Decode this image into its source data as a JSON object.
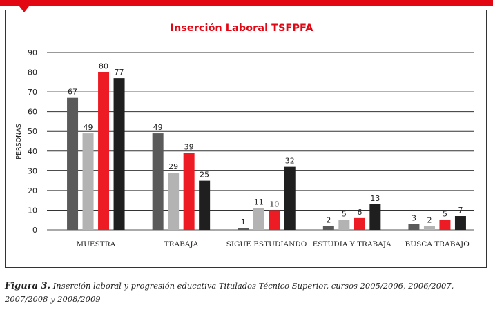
{
  "caption": {
    "figure_label": "Figura 3.",
    "text": "Inserción laboral y progresión educativa Titulados Técnico Superior, cursos 2005/2006, 2006/2007, 2007/2008 y 2008/2009"
  },
  "colors": {
    "accent": "#e30613",
    "series": [
      "#5a5a5a",
      "#b3b3b3",
      "#ed1c24",
      "#1f1f1f"
    ]
  },
  "chart_data": {
    "type": "bar",
    "title": "Inserción Laboral TSFPFA",
    "xlabel": "",
    "ylabel": "PERSONAS",
    "ylim": [
      0,
      90
    ],
    "yticks": [
      0,
      10,
      20,
      30,
      40,
      50,
      60,
      70,
      80,
      90
    ],
    "grid": true,
    "legend": "none",
    "categories": [
      "MUESTRA",
      "TRABAJA",
      "SIGUE ESTUDIANDO",
      "ESTUDIA Y TRABAJA",
      "BUSCA TRABAJO"
    ],
    "series": [
      {
        "values": [
          67,
          49,
          1,
          2,
          3
        ]
      },
      {
        "values": [
          49,
          29,
          11,
          5,
          2
        ]
      },
      {
        "values": [
          80,
          39,
          10,
          6,
          5
        ]
      },
      {
        "values": [
          77,
          25,
          32,
          13,
          7
        ]
      }
    ]
  }
}
